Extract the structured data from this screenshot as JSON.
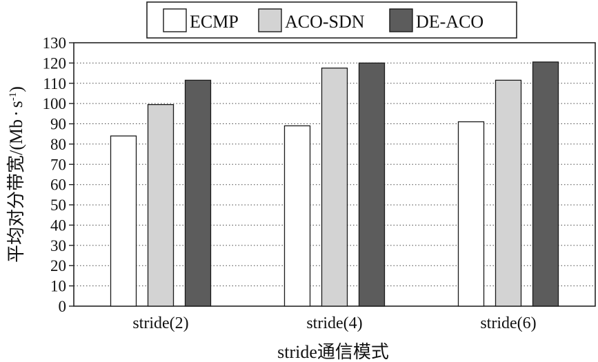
{
  "chart_data": {
    "type": "bar",
    "title": "",
    "xlabel": "stride通信模式",
    "ylabel": "平均对分带宽/(Mb·s⁻¹)",
    "ylabel_main": "平均对分带宽/(Mb",
    "ylabel_dot": "·",
    "ylabel_unit_base": "s",
    "ylabel_unit_exp": "-1",
    "ylabel_close": ")",
    "ylim": [
      0,
      130
    ],
    "ytick_step": 10,
    "yticks": [
      "0",
      "10",
      "20",
      "30",
      "40",
      "50",
      "60",
      "70",
      "80",
      "90",
      "100",
      "110",
      "120",
      "130"
    ],
    "grid": "horizontal-dotted",
    "legend_position": "top-center",
    "categories": [
      "stride(2)",
      "stride(4)",
      "stride(6)"
    ],
    "series": [
      {
        "name": "ECMP",
        "values": [
          84,
          89,
          91
        ],
        "color": "#ffffff"
      },
      {
        "name": "ACO-SDN",
        "values": [
          99.5,
          117.5,
          111.5
        ],
        "color": "#d3d3d3"
      },
      {
        "name": "DE-ACO",
        "values": [
          111.5,
          120,
          120.5
        ],
        "color": "#5c5c5c"
      }
    ]
  }
}
